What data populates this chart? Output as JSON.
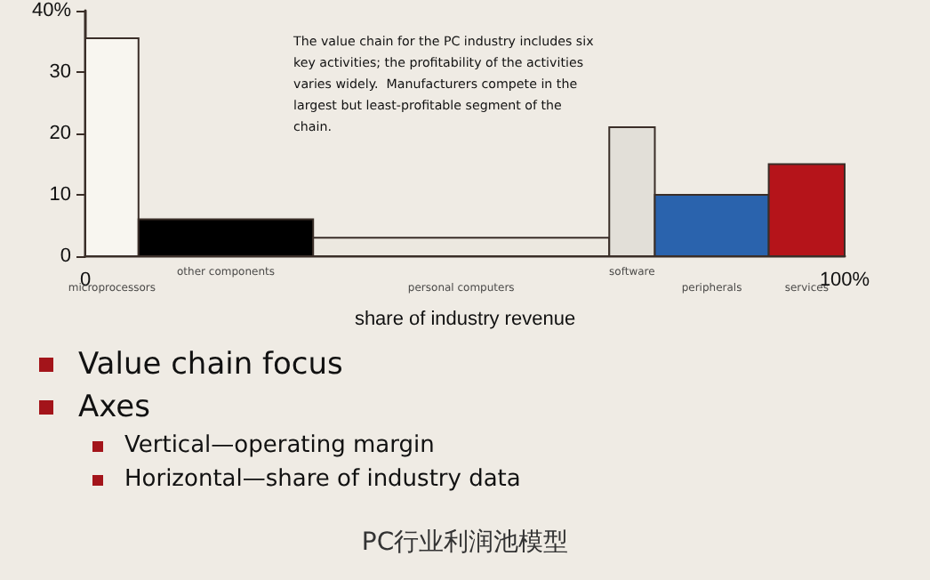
{
  "chart_data": {
    "type": "histogram",
    "title": "PC行业利润池模型",
    "xlabel": "share of industry revenue",
    "bins": [
      0,
      7,
      30,
      69,
      75,
      90,
      100
    ],
    "values": [
      35.5,
      6,
      3,
      21,
      10,
      15
    ],
    "colors": [
      "#f8f6f0",
      "#000000",
      "#ece8e0",
      "#e2dfd8",
      "#2a63ad",
      "#b5141a"
    ],
    "xlim": [
      0,
      100
    ],
    "xticks": [
      0,
      {
        "value": 100,
        "label": "100%"
      }
    ],
    "ylim": [
      0,
      40
    ],
    "yticks": [
      0,
      10,
      20,
      30,
      {
        "value": 40,
        "label": "40%"
      }
    ],
    "grid": false,
    "annotations": [
      "The value chain for the PC industry includes six key activities; the profitability of the activities varies widely.  Manufacturers compete in the largest but least-profitable segment of the chain.",
      {
        "text": "microprocessors",
        "x": 3.5,
        "y": 0
      },
      {
        "text": "other components",
        "x": 18.5,
        "y": 0
      },
      {
        "text": "personal computers",
        "x": 49.5,
        "y": 0
      },
      {
        "text": "software",
        "x": 72,
        "y": 0
      },
      {
        "text": "peripherals",
        "x": 82.5,
        "y": 0
      },
      {
        "text": "services",
        "x": 95,
        "y": 0
      },
      "Value chain focus",
      "Axes",
      "Vertical—operating margin",
      "Horizontal—share of industry data"
    ]
  }
}
